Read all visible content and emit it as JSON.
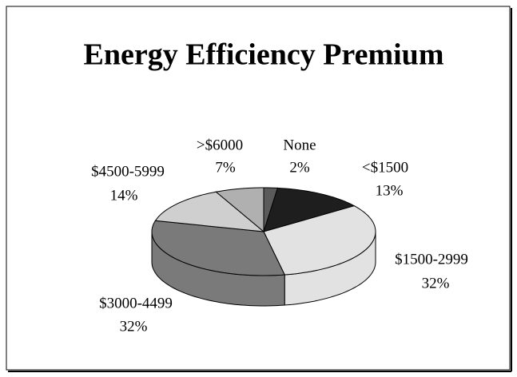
{
  "chart_data": {
    "type": "pie3d",
    "title": "Energy Efficiency Premium",
    "categories": [
      "None",
      "<$1500",
      "$1500-2999",
      "$3000-4499",
      "$4500-5999",
      ">$6000"
    ],
    "values": [
      2,
      13,
      32,
      32,
      14,
      7
    ],
    "value_labels": [
      "2%",
      "13%",
      "32%",
      "32%",
      "14%",
      "7%"
    ],
    "colors": [
      "#5a5a5a",
      "#1e1e1e",
      "#e2e2e2",
      "#7a7a7a",
      "#cfcfcf",
      "#b0b0b0"
    ]
  }
}
